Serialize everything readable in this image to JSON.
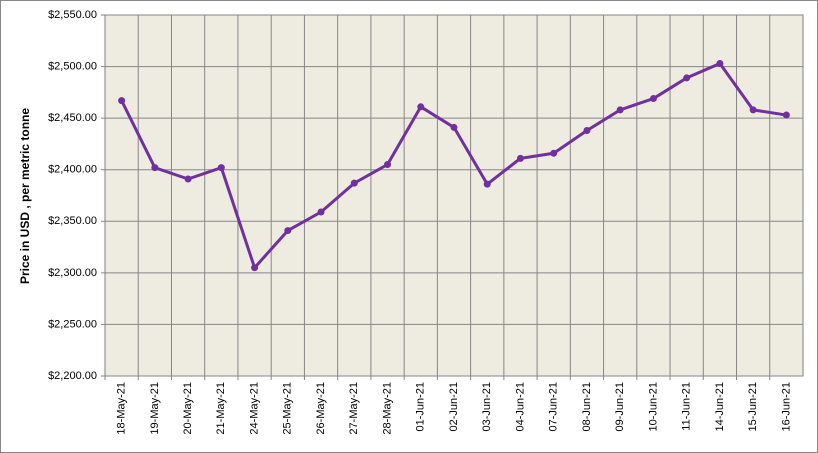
{
  "chart_data": {
    "type": "line",
    "y_label": "Price in USD , per metric tonne",
    "categories": [
      "18-May-21",
      "19-May-21",
      "20-May-21",
      "21-May-21",
      "24-May-21",
      "25-May-21",
      "26-May-21",
      "27-May-21",
      "28-May-21",
      "01-Jun-21",
      "02-Jun-21",
      "03-Jun-21",
      "04-Jun-21",
      "07-Jun-21",
      "08-Jun-21",
      "09-Jun-21",
      "10-Jun-21",
      "11-Jun-21",
      "14-Jun-21",
      "15-Jun-21",
      "16-Jun-21"
    ],
    "series": [
      {
        "color": "#7030a0",
        "values": [
          2467,
          2402,
          2391,
          2402,
          2305,
          2341,
          2359,
          2387,
          2405,
          2461,
          2441,
          2386,
          2411,
          2416,
          2438,
          2458,
          2469,
          2489,
          2503,
          2458,
          2453
        ]
      }
    ],
    "ylim": [
      2200,
      2550
    ],
    "yticks": [
      {
        "value": 2200,
        "label": "$2,200.00"
      },
      {
        "value": 2250,
        "label": "$2,250.00"
      },
      {
        "value": 2300,
        "label": "$2,300.00"
      },
      {
        "value": 2350,
        "label": "$2,350.00"
      },
      {
        "value": 2400,
        "label": "$2,400.00"
      },
      {
        "value": 2450,
        "label": "$2,450.00"
      },
      {
        "value": 2500,
        "label": "$2,500.00"
      },
      {
        "value": 2550,
        "label": "$2,550.00"
      }
    ],
    "grid": true,
    "plot_background": "#eeece1"
  }
}
